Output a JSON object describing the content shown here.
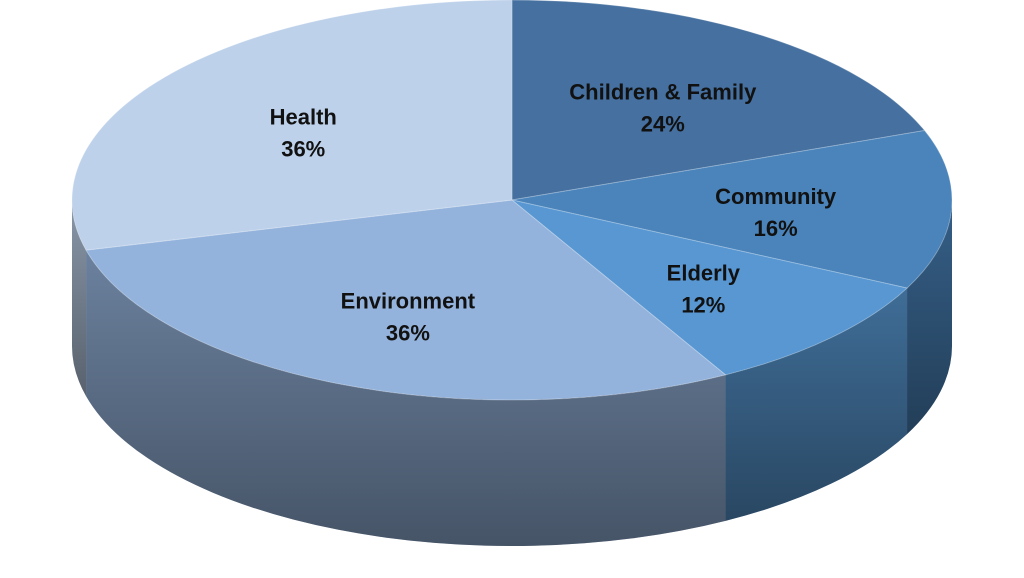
{
  "chart_data": {
    "type": "pie",
    "style": "3d",
    "title": "",
    "slices": [
      {
        "name": "Children & Family",
        "value": 24,
        "label": "24%",
        "color": "#45709f"
      },
      {
        "name": "Community",
        "value": 16,
        "label": "16%",
        "color": "#4a84bb"
      },
      {
        "name": "Elderly",
        "value": 12,
        "label": "12%",
        "color": "#5897d2"
      },
      {
        "name": "Environment",
        "value": 36,
        "label": "36%",
        "color": "#94b3dc"
      },
      {
        "name": "Health",
        "value": 36,
        "label": "36%",
        "color": "#bdd1ea"
      }
    ],
    "legend": "none"
  }
}
